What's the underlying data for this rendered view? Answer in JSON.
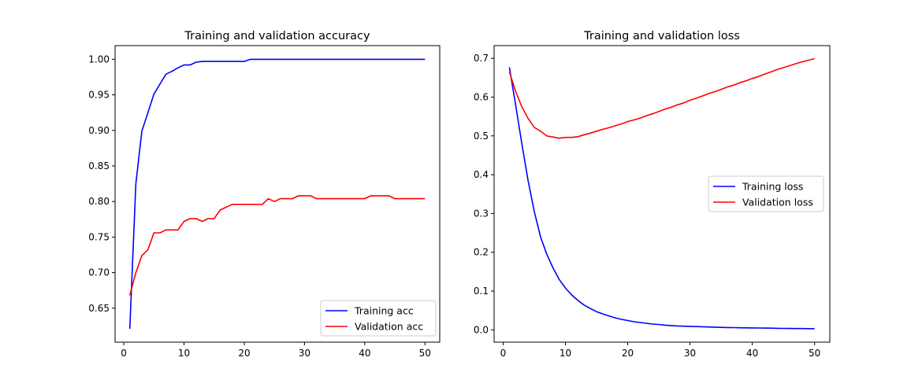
{
  "chart_data": [
    {
      "type": "line",
      "title": "Training and validation accuracy",
      "xlabel": "",
      "ylabel": "",
      "xlim": [
        -1.45,
        52.45
      ],
      "ylim": [
        0.6022,
        1.0192
      ],
      "xticks": [
        0,
        10,
        20,
        30,
        40,
        50
      ],
      "xtick_labels": [
        "0",
        "10",
        "20",
        "30",
        "40",
        "50"
      ],
      "yticks": [
        0.65,
        0.7,
        0.75,
        0.8,
        0.85,
        0.9,
        0.95,
        1.0
      ],
      "ytick_labels": [
        "0.65",
        "0.70",
        "0.75",
        "0.80",
        "0.85",
        "0.90",
        "0.95",
        "1.00"
      ],
      "grid": false,
      "legend_position": "lower-right",
      "series": [
        {
          "name": "Training acc",
          "color": "#0000ff",
          "values": [
            0.621,
            0.825,
            0.899,
            0.925,
            0.951,
            0.965,
            0.979,
            0.983,
            0.988,
            0.992,
            0.992,
            0.996,
            0.997,
            0.997,
            0.997,
            0.997,
            0.997,
            0.997,
            0.997,
            0.997,
            1.0,
            1.0,
            1.0,
            1.0,
            1.0,
            1.0,
            1.0,
            1.0,
            1.0,
            1.0,
            1.0,
            1.0,
            1.0,
            1.0,
            1.0,
            1.0,
            1.0,
            1.0,
            1.0,
            1.0,
            1.0,
            1.0,
            1.0,
            1.0,
            1.0,
            1.0,
            1.0,
            1.0,
            1.0,
            1.0
          ]
        },
        {
          "name": "Validation acc",
          "color": "#ff0000",
          "values": [
            0.668,
            0.7,
            0.724,
            0.732,
            0.756,
            0.756,
            0.76,
            0.76,
            0.76,
            0.772,
            0.776,
            0.776,
            0.772,
            0.776,
            0.776,
            0.788,
            0.792,
            0.796,
            0.796,
            0.796,
            0.796,
            0.796,
            0.796,
            0.804,
            0.8,
            0.804,
            0.804,
            0.804,
            0.808,
            0.808,
            0.808,
            0.804,
            0.804,
            0.804,
            0.804,
            0.804,
            0.804,
            0.804,
            0.804,
            0.804,
            0.808,
            0.808,
            0.808,
            0.808,
            0.804,
            0.804,
            0.804,
            0.804,
            0.804,
            0.804
          ]
        }
      ]
    },
    {
      "type": "line",
      "title": "Training and validation loss",
      "xlabel": "",
      "ylabel": "",
      "xlim": [
        -1.45,
        52.45
      ],
      "ylim": [
        -0.0317,
        0.7327
      ],
      "xticks": [
        0,
        10,
        20,
        30,
        40,
        50
      ],
      "xtick_labels": [
        "0",
        "10",
        "20",
        "30",
        "40",
        "50"
      ],
      "yticks": [
        0.0,
        0.1,
        0.2,
        0.3,
        0.4,
        0.5,
        0.6,
        0.7
      ],
      "ytick_labels": [
        "0.0",
        "0.1",
        "0.2",
        "0.3",
        "0.4",
        "0.5",
        "0.6",
        "0.7"
      ],
      "grid": false,
      "legend_position": "center-right",
      "series": [
        {
          "name": "Training loss",
          "color": "#0000ff",
          "values": [
            0.677,
            0.58,
            0.48,
            0.385,
            0.305,
            0.24,
            0.195,
            0.16,
            0.13,
            0.108,
            0.09,
            0.076,
            0.064,
            0.055,
            0.047,
            0.041,
            0.036,
            0.031,
            0.027,
            0.024,
            0.021,
            0.019,
            0.017,
            0.015,
            0.014,
            0.012,
            0.011,
            0.01,
            0.0095,
            0.009,
            0.0085,
            0.008,
            0.0075,
            0.007,
            0.0065,
            0.006,
            0.0058,
            0.0055,
            0.0052,
            0.005,
            0.0048,
            0.0045,
            0.0043,
            0.004,
            0.0038,
            0.0036,
            0.0034,
            0.0033,
            0.0032,
            0.003
          ]
        },
        {
          "name": "Validation loss",
          "color": "#ff0000",
          "values": [
            0.665,
            0.615,
            0.575,
            0.545,
            0.522,
            0.512,
            0.5,
            0.497,
            0.494,
            0.496,
            0.496,
            0.498,
            0.503,
            0.507,
            0.512,
            0.517,
            0.521,
            0.526,
            0.531,
            0.537,
            0.541,
            0.546,
            0.552,
            0.557,
            0.563,
            0.569,
            0.574,
            0.58,
            0.585,
            0.592,
            0.597,
            0.603,
            0.609,
            0.614,
            0.62,
            0.626,
            0.631,
            0.637,
            0.642,
            0.648,
            0.653,
            0.659,
            0.665,
            0.671,
            0.676,
            0.681,
            0.686,
            0.691,
            0.695,
            0.699
          ]
        }
      ]
    }
  ]
}
